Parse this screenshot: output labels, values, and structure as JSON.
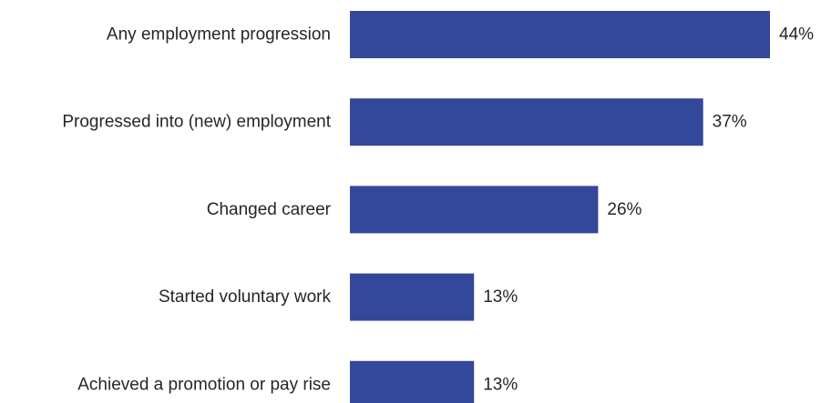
{
  "chart_data": {
    "type": "bar",
    "orientation": "horizontal",
    "title": "",
    "xlabel": "",
    "ylabel": "",
    "categories": [
      "Any employment progression",
      "Progressed into (new) employment",
      "Changed career",
      "Started voluntary work",
      "Achieved a promotion or pay rise"
    ],
    "values": [
      44,
      37,
      26,
      13,
      13
    ],
    "value_labels": [
      "44%",
      "37%",
      "26%",
      "13%",
      "13%"
    ],
    "xlim": [
      0,
      44
    ],
    "grid": false,
    "legend": "none",
    "bar_color": "#33479b"
  }
}
